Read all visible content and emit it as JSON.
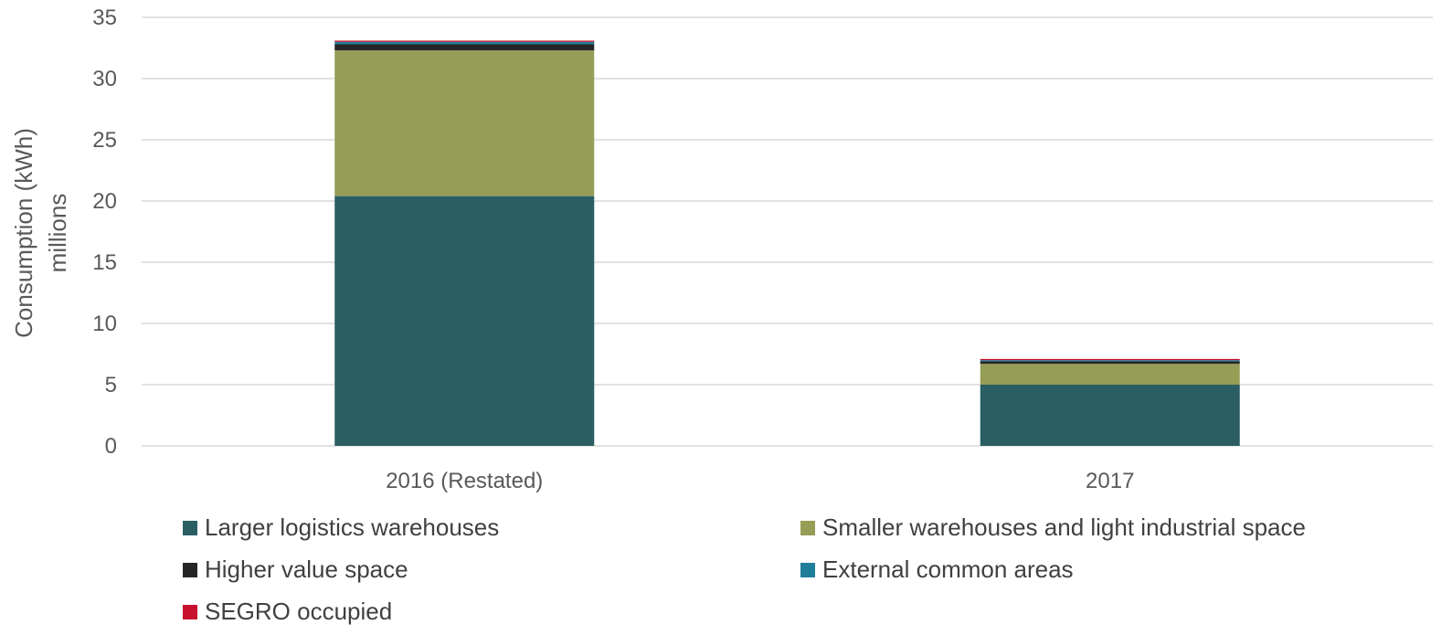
{
  "chart_data": {
    "type": "bar",
    "stacked": true,
    "categories": [
      "2016 (Restated)",
      "2017"
    ],
    "series": [
      {
        "name": "Larger logistics warehouses",
        "color": "#2a5e63",
        "values": [
          20.4,
          5.0
        ]
      },
      {
        "name": "Smaller warehouses and light industrial space",
        "color": "#969d57",
        "values": [
          11.9,
          1.7
        ]
      },
      {
        "name": "Higher value space",
        "color": "#262626",
        "values": [
          0.5,
          0.2
        ]
      },
      {
        "name": "External common areas",
        "color": "#1f7f9b",
        "values": [
          0.2,
          0.1
        ]
      },
      {
        "name": "SEGRO occupied",
        "color": "#c8102e",
        "values": [
          0.1,
          0.1
        ]
      }
    ],
    "ylabel": "Consumption (kWh) millions",
    "ylabel_lines": [
      "Consumption (kWh)",
      "millions"
    ],
    "ylim": [
      0,
      35
    ],
    "yticks": [
      0,
      5,
      10,
      15,
      20,
      25,
      30,
      35
    ],
    "grid": true,
    "legend": "bottom"
  }
}
